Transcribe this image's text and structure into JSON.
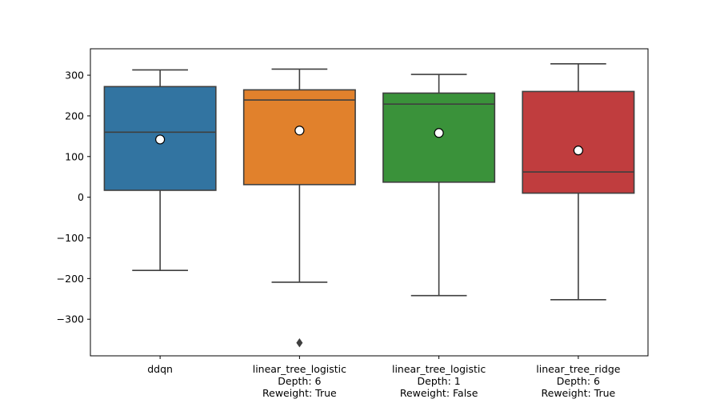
{
  "chart_data": {
    "type": "box",
    "title": "",
    "xlabel": "",
    "ylabel": "",
    "ylim": [
      -390,
      365
    ],
    "y_ticks": [
      -300,
      -200,
      -100,
      0,
      100,
      200,
      300
    ],
    "y_tick_labels": [
      "−300",
      "−200",
      "−100",
      "0",
      "100",
      "200",
      "300"
    ],
    "grid": false,
    "legend": "none",
    "categories": [
      {
        "lines": [
          "ddqn"
        ],
        "color": "#3274a1",
        "whisker_low": -180,
        "q1": 17,
        "median": 160,
        "q3": 272,
        "whisker_high": 313,
        "mean": 142,
        "outliers": []
      },
      {
        "lines": [
          "linear_tree_logistic",
          "Depth: 6",
          "Reweight: True"
        ],
        "color": "#e1812c",
        "whisker_low": -209,
        "q1": 31,
        "median": 239,
        "q3": 264,
        "whisker_high": 315,
        "mean": 164,
        "outliers": [
          -358
        ]
      },
      {
        "lines": [
          "linear_tree_logistic",
          "Depth: 1",
          "Reweight: False"
        ],
        "color": "#3a923a",
        "whisker_low": -242,
        "q1": 37,
        "median": 229,
        "q3": 256,
        "whisker_high": 302,
        "mean": 158,
        "outliers": []
      },
      {
        "lines": [
          "linear_tree_ridge",
          "Depth: 6",
          "Reweight: True"
        ],
        "color": "#c03d3e",
        "whisker_low": -252,
        "q1": 10,
        "median": 62,
        "q3": 260,
        "whisker_high": 328,
        "mean": 115,
        "outliers": []
      }
    ]
  }
}
